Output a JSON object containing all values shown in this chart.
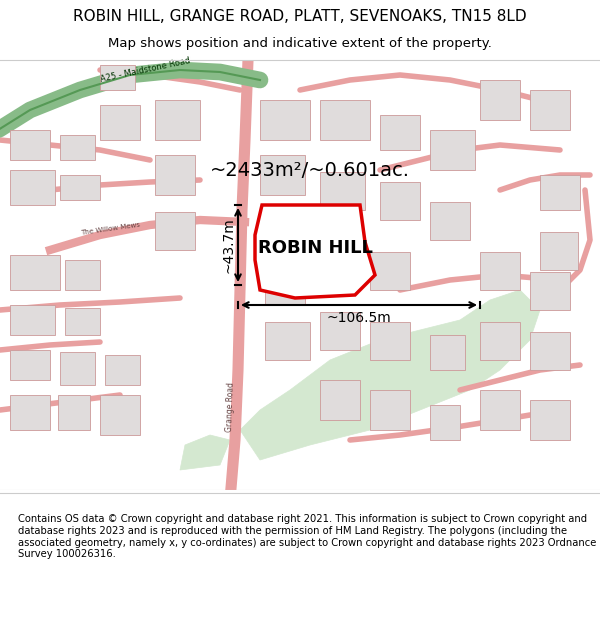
{
  "title_line1": "ROBIN HILL, GRANGE ROAD, PLATT, SEVENOAKS, TN15 8LD",
  "title_line2": "Map shows position and indicative extent of the property.",
  "property_label": "ROBIN HILL",
  "area_text": "~2433m²/~0.601ac.",
  "width_text": "~106.5m",
  "height_text": "~43.7m",
  "footer_text": "Contains OS data © Crown copyright and database right 2021. This information is subject to Crown copyright and database rights 2023 and is reproduced with the permission of HM Land Registry. The polygons (including the associated geometry, namely x, y co-ordinates) are subject to Crown copyright and database rights 2023 Ordnance Survey 100026316.",
  "bg_color": "#f5f0f0",
  "road_color": "#e8b8b8",
  "road_outline_color": "#cc8888",
  "green_area_color": "#d4e8d0",
  "property_fill": "#ffffff",
  "property_outline": "#dd0000",
  "title_bg": "#ffffff",
  "footer_bg": "#ffffff",
  "map_border_color": "#cccccc",
  "arrow_color": "#000000",
  "text_color": "#000000",
  "green_road_color": "#88bb88",
  "fig_width": 6.0,
  "fig_height": 6.25,
  "dpi": 100
}
